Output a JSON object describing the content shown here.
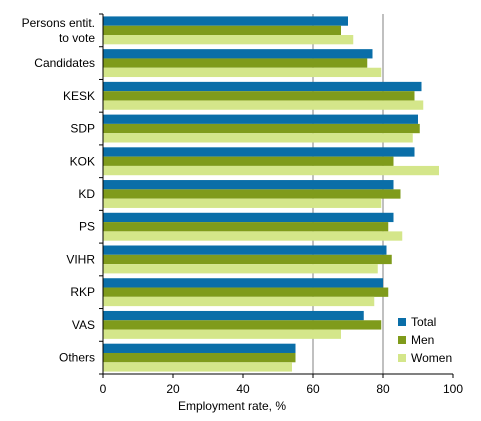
{
  "colors": {
    "total": "#0a6ea8",
    "men": "#7f9b1b",
    "women": "#d4e68a",
    "grid": "#808080",
    "axis": "#000000"
  },
  "chart_data": {
    "type": "bar",
    "orientation": "horizontal",
    "title": "",
    "xlabel": "Employment rate, %",
    "ylabel": "",
    "xlim": [
      0,
      100
    ],
    "xticks": [
      0,
      20,
      40,
      60,
      80,
      100
    ],
    "grid": "vertical gridlines at 60 and 80",
    "legend_position": "bottom-right",
    "categories": [
      [
        "Persons entit.",
        "to vote"
      ],
      [
        "Candidates"
      ],
      [
        "KESK"
      ],
      [
        "SDP"
      ],
      [
        "KOK"
      ],
      [
        "KD"
      ],
      [
        "PS"
      ],
      [
        "VIHR"
      ],
      [
        "RKP"
      ],
      [
        "VAS"
      ],
      [
        "Others"
      ]
    ],
    "series": [
      {
        "name": "Total",
        "color_key": "total",
        "values": [
          70,
          77,
          91,
          90,
          89,
          83,
          83,
          81,
          80,
          74.5,
          55
        ]
      },
      {
        "name": "Men",
        "color_key": "men",
        "values": [
          68,
          75.5,
          89,
          90.5,
          83,
          85,
          81.5,
          82.5,
          81.5,
          79.5,
          55
        ]
      },
      {
        "name": "Women",
        "color_key": "women",
        "values": [
          71.5,
          79.5,
          91.5,
          88.5,
          96,
          79.5,
          85.5,
          78.5,
          77.5,
          68,
          54
        ]
      }
    ]
  }
}
